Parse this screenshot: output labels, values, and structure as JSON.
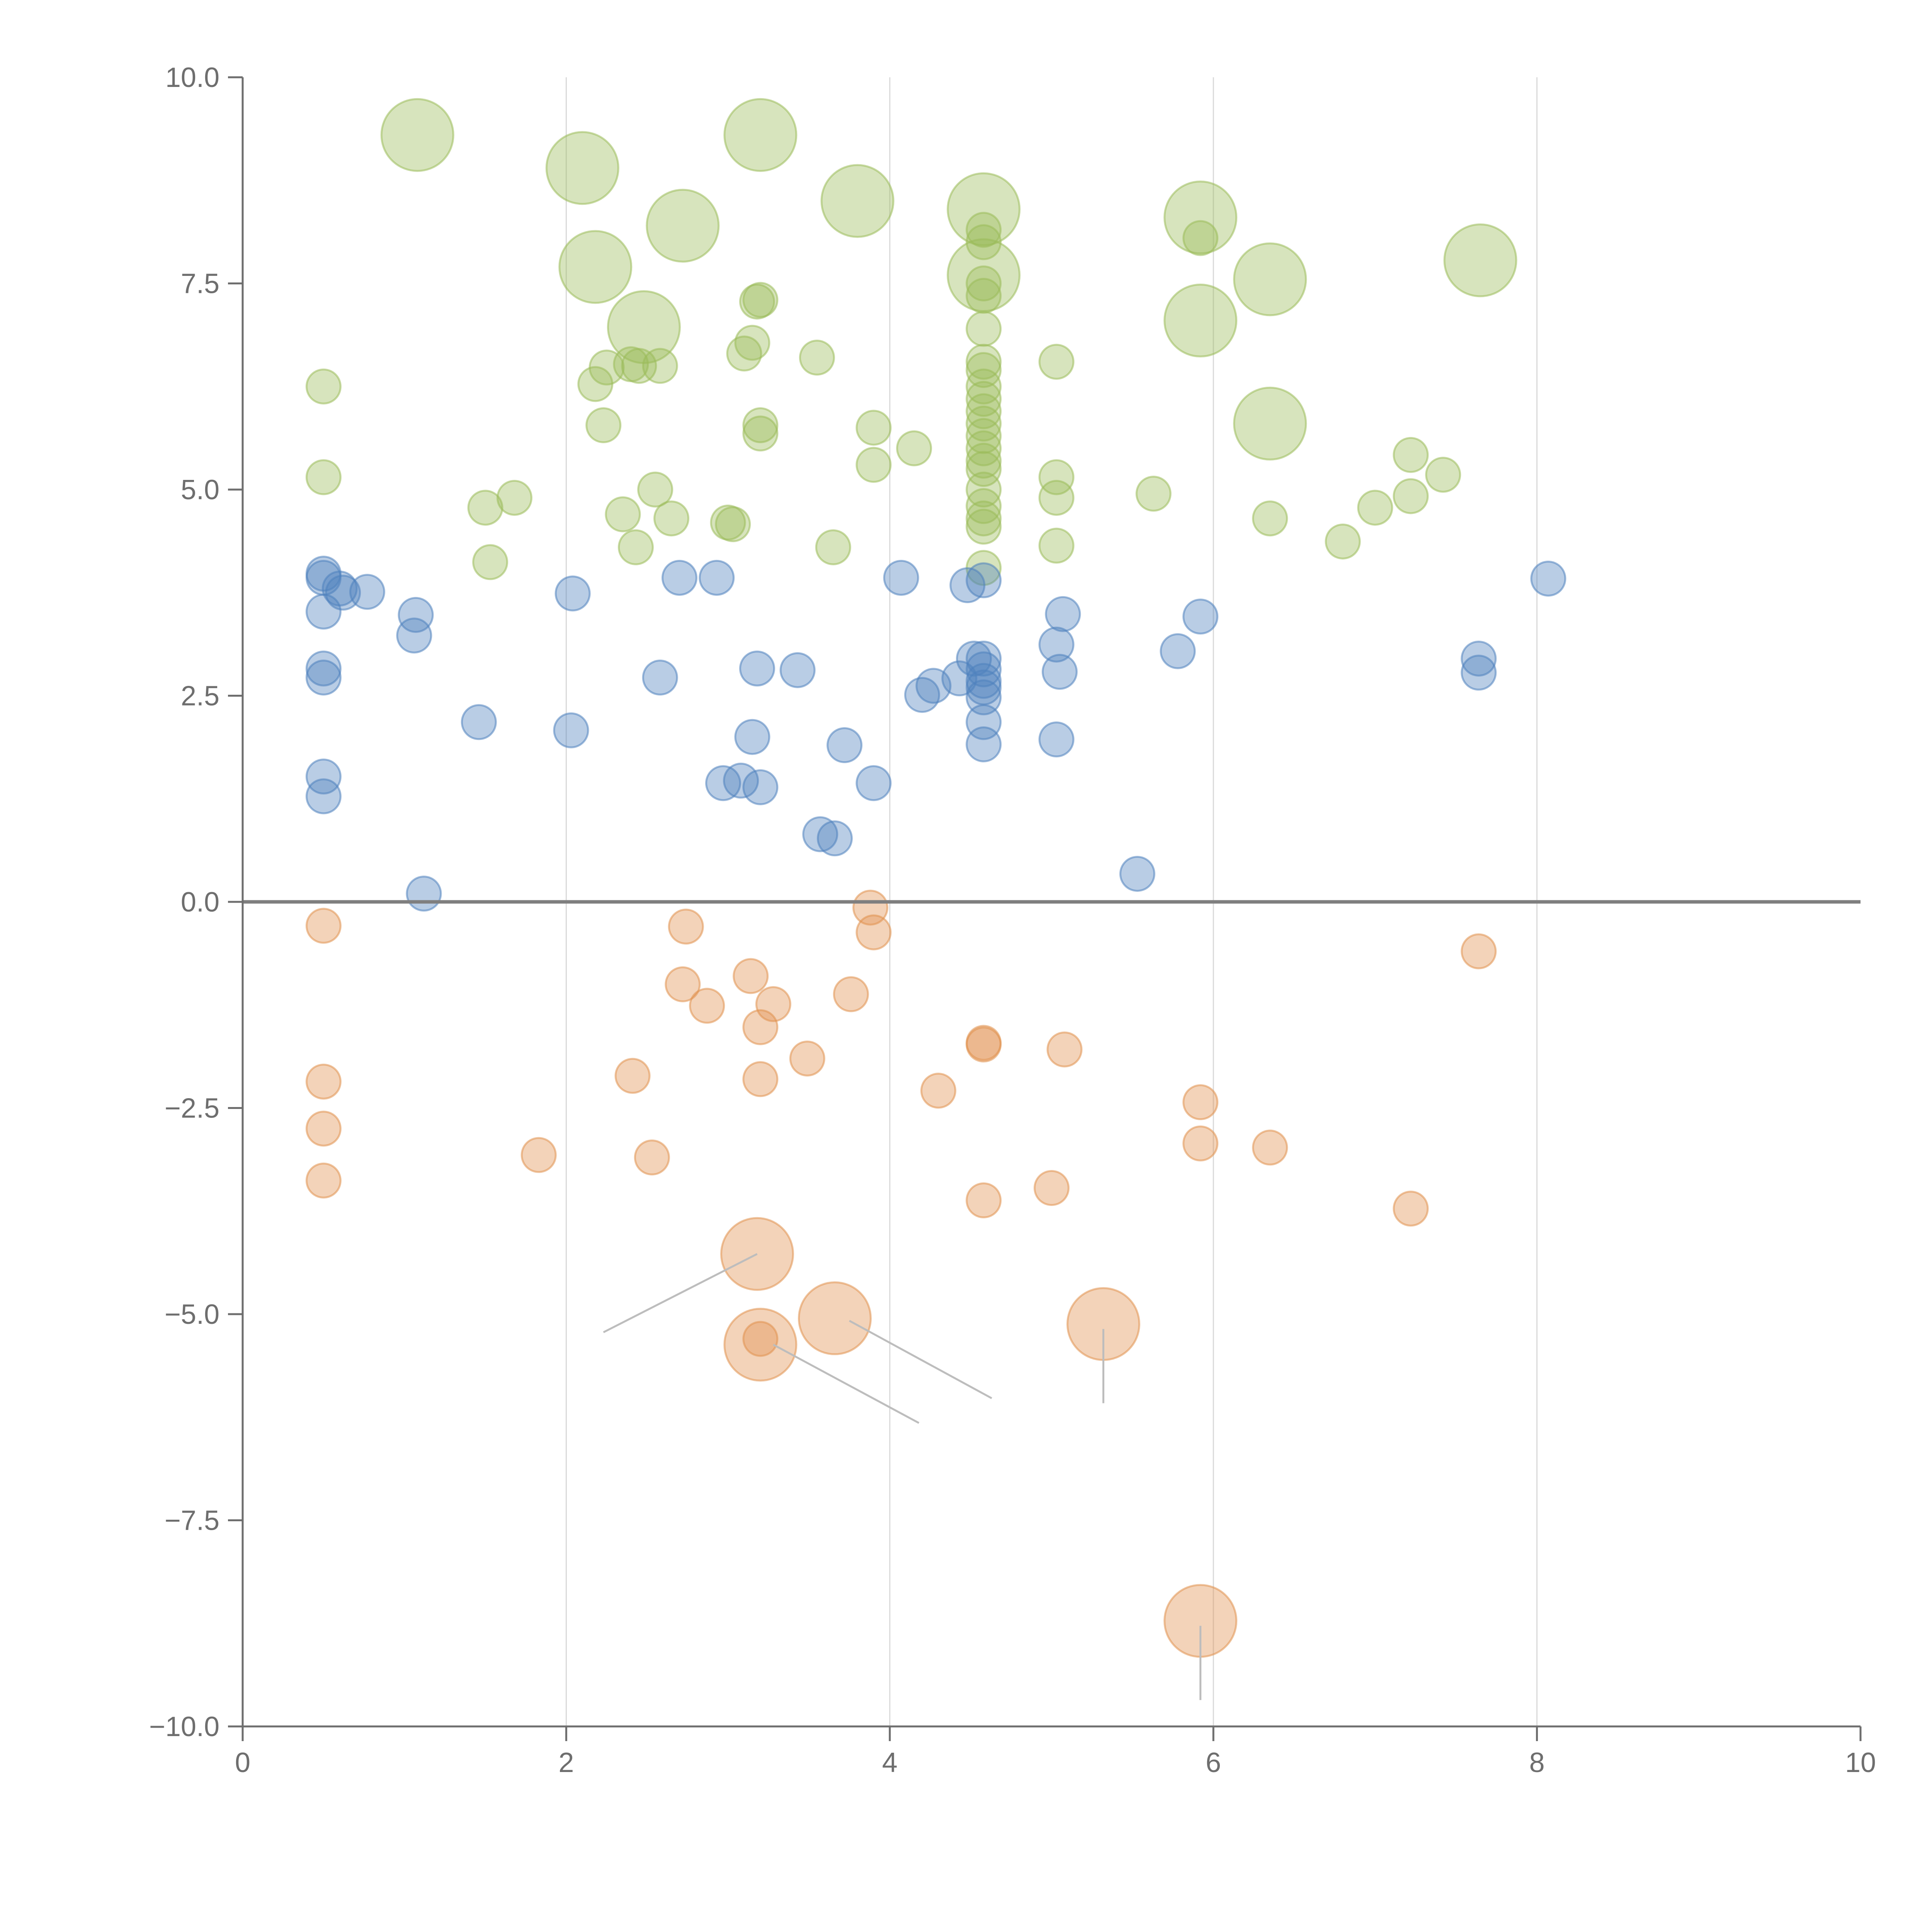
{
  "chart_data": {
    "type": "scatter",
    "title": "",
    "xlabel": "",
    "ylabel": "",
    "xlim": [
      0,
      10
    ],
    "ylim": [
      -10,
      10
    ],
    "x_ticks": [
      "0",
      "2",
      "4",
      "6",
      "8",
      "10"
    ],
    "y_ticks": [
      "10.0",
      "7.5",
      "5.0",
      "2.5",
      "0.0",
      "−2.5",
      "−5.0",
      "−7.5",
      "−10.0"
    ],
    "vertical_grid": [
      2,
      4,
      6,
      8
    ],
    "zero_line": 0,
    "colors": {
      "green": "#9bbb59",
      "blue": "#4f81bd",
      "orange": "#e0914f",
      "axis": "#6e6e6e",
      "grid": "#d9d9d9",
      "zero": "#7f7f7f",
      "leader": "#bdbdbd"
    },
    "series": [
      {
        "name": "green",
        "color": "#9bbb59",
        "points": [
          {
            "x": 1.08,
            "y": 9.3,
            "s": 2
          },
          {
            "x": 2.1,
            "y": 8.9,
            "s": 2
          },
          {
            "x": 3.2,
            "y": 9.3,
            "s": 2
          },
          {
            "x": 2.72,
            "y": 8.2,
            "s": 2
          },
          {
            "x": 3.8,
            "y": 8.5,
            "s": 2
          },
          {
            "x": 4.58,
            "y": 8.4,
            "s": 2
          },
          {
            "x": 5.92,
            "y": 8.3,
            "s": 2
          },
          {
            "x": 2.18,
            "y": 7.7,
            "s": 2
          },
          {
            "x": 4.58,
            "y": 7.6,
            "s": 2
          },
          {
            "x": 6.35,
            "y": 7.55,
            "s": 2
          },
          {
            "x": 7.65,
            "y": 7.78,
            "s": 2
          },
          {
            "x": 2.48,
            "y": 6.97,
            "s": 2
          },
          {
            "x": 5.92,
            "y": 7.05,
            "s": 2
          },
          {
            "x": 6.35,
            "y": 5.8,
            "s": 2
          },
          {
            "x": 0.5,
            "y": 6.25,
            "s": 1
          },
          {
            "x": 0.5,
            "y": 5.15,
            "s": 1
          },
          {
            "x": 1.5,
            "y": 4.78,
            "s": 1
          },
          {
            "x": 1.53,
            "y": 4.12,
            "s": 1
          },
          {
            "x": 1.68,
            "y": 4.9,
            "s": 1
          },
          {
            "x": 2.18,
            "y": 6.28,
            "s": 1
          },
          {
            "x": 2.25,
            "y": 6.48,
            "s": 1
          },
          {
            "x": 2.4,
            "y": 6.52,
            "s": 1
          },
          {
            "x": 2.45,
            "y": 6.5,
            "s": 1
          },
          {
            "x": 2.58,
            "y": 6.5,
            "s": 1
          },
          {
            "x": 2.23,
            "y": 5.78,
            "s": 1
          },
          {
            "x": 2.35,
            "y": 4.7,
            "s": 1
          },
          {
            "x": 2.43,
            "y": 4.3,
            "s": 1
          },
          {
            "x": 2.55,
            "y": 5.0,
            "s": 1
          },
          {
            "x": 2.65,
            "y": 4.65,
            "s": 1
          },
          {
            "x": 3.0,
            "y": 4.6,
            "s": 1
          },
          {
            "x": 3.03,
            "y": 4.58,
            "s": 1
          },
          {
            "x": 3.1,
            "y": 6.65,
            "s": 1
          },
          {
            "x": 3.15,
            "y": 6.78,
            "s": 1
          },
          {
            "x": 3.18,
            "y": 7.28,
            "s": 1
          },
          {
            "x": 3.2,
            "y": 7.3,
            "s": 1
          },
          {
            "x": 3.2,
            "y": 5.78,
            "s": 1
          },
          {
            "x": 3.2,
            "y": 5.68,
            "s": 1
          },
          {
            "x": 3.55,
            "y": 6.6,
            "s": 1
          },
          {
            "x": 3.65,
            "y": 4.3,
            "s": 1
          },
          {
            "x": 3.9,
            "y": 5.75,
            "s": 1
          },
          {
            "x": 3.9,
            "y": 5.3,
            "s": 1
          },
          {
            "x": 4.15,
            "y": 5.5,
            "s": 1
          },
          {
            "x": 4.58,
            "y": 8.15,
            "s": 1
          },
          {
            "x": 4.58,
            "y": 8.0,
            "s": 1
          },
          {
            "x": 4.58,
            "y": 7.5,
            "s": 1
          },
          {
            "x": 4.58,
            "y": 7.35,
            "s": 1
          },
          {
            "x": 4.58,
            "y": 6.95,
            "s": 1
          },
          {
            "x": 4.58,
            "y": 6.55,
            "s": 1
          },
          {
            "x": 4.58,
            "y": 6.45,
            "s": 1
          },
          {
            "x": 4.58,
            "y": 6.25,
            "s": 1
          },
          {
            "x": 4.58,
            "y": 6.1,
            "s": 1
          },
          {
            "x": 4.58,
            "y": 5.95,
            "s": 1
          },
          {
            "x": 4.58,
            "y": 5.8,
            "s": 1
          },
          {
            "x": 4.58,
            "y": 5.65,
            "s": 1
          },
          {
            "x": 4.58,
            "y": 5.5,
            "s": 1
          },
          {
            "x": 4.58,
            "y": 5.35,
            "s": 1
          },
          {
            "x": 4.58,
            "y": 5.25,
            "s": 1
          },
          {
            "x": 4.58,
            "y": 5.0,
            "s": 1
          },
          {
            "x": 4.58,
            "y": 4.8,
            "s": 1
          },
          {
            "x": 4.58,
            "y": 4.65,
            "s": 1
          },
          {
            "x": 4.58,
            "y": 4.55,
            "s": 1
          },
          {
            "x": 4.58,
            "y": 4.05,
            "s": 1
          },
          {
            "x": 5.03,
            "y": 6.55,
            "s": 1
          },
          {
            "x": 5.03,
            "y": 5.15,
            "s": 1
          },
          {
            "x": 5.03,
            "y": 4.9,
            "s": 1
          },
          {
            "x": 5.03,
            "y": 4.32,
            "s": 1
          },
          {
            "x": 5.63,
            "y": 4.95,
            "s": 1
          },
          {
            "x": 5.92,
            "y": 8.05,
            "s": 1
          },
          {
            "x": 6.35,
            "y": 4.65,
            "s": 1
          },
          {
            "x": 6.8,
            "y": 4.37,
            "s": 1
          },
          {
            "x": 7.0,
            "y": 4.78,
            "s": 1
          },
          {
            "x": 7.22,
            "y": 5.42,
            "s": 1
          },
          {
            "x": 7.22,
            "y": 4.92,
            "s": 1
          },
          {
            "x": 7.42,
            "y": 5.18,
            "s": 1
          }
        ]
      },
      {
        "name": "blue",
        "color": "#4f81bd",
        "points": [
          {
            "x": 0.5,
            "y": 3.98,
            "s": 1
          },
          {
            "x": 0.5,
            "y": 3.93,
            "s": 1
          },
          {
            "x": 0.6,
            "y": 3.8,
            "s": 1
          },
          {
            "x": 0.62,
            "y": 3.75,
            "s": 1
          },
          {
            "x": 0.77,
            "y": 3.76,
            "s": 1
          },
          {
            "x": 0.5,
            "y": 3.52,
            "s": 1
          },
          {
            "x": 0.5,
            "y": 2.83,
            "s": 1
          },
          {
            "x": 0.5,
            "y": 2.72,
            "s": 1
          },
          {
            "x": 0.5,
            "y": 1.52,
            "s": 1
          },
          {
            "x": 0.5,
            "y": 1.28,
            "s": 1
          },
          {
            "x": 1.07,
            "y": 3.48,
            "s": 1
          },
          {
            "x": 1.06,
            "y": 3.23,
            "s": 1
          },
          {
            "x": 1.12,
            "y": 0.1,
            "s": 1
          },
          {
            "x": 1.46,
            "y": 2.18,
            "s": 1
          },
          {
            "x": 2.04,
            "y": 3.74,
            "s": 1
          },
          {
            "x": 2.03,
            "y": 2.08,
            "s": 1
          },
          {
            "x": 2.58,
            "y": 2.72,
            "s": 1
          },
          {
            "x": 2.7,
            "y": 3.93,
            "s": 1
          },
          {
            "x": 2.93,
            "y": 3.93,
            "s": 1
          },
          {
            "x": 2.97,
            "y": 1.44,
            "s": 1
          },
          {
            "x": 3.08,
            "y": 1.47,
            "s": 1
          },
          {
            "x": 3.18,
            "y": 2.83,
            "s": 1
          },
          {
            "x": 3.15,
            "y": 2.0,
            "s": 1
          },
          {
            "x": 3.2,
            "y": 1.39,
            "s": 1
          },
          {
            "x": 3.43,
            "y": 2.81,
            "s": 1
          },
          {
            "x": 3.57,
            "y": 0.82,
            "s": 1
          },
          {
            "x": 3.66,
            "y": 0.77,
            "s": 1
          },
          {
            "x": 3.72,
            "y": 1.9,
            "s": 1
          },
          {
            "x": 3.9,
            "y": 1.44,
            "s": 1
          },
          {
            "x": 4.07,
            "y": 3.93,
            "s": 1
          },
          {
            "x": 4.2,
            "y": 2.51,
            "s": 1
          },
          {
            "x": 4.27,
            "y": 2.62,
            "s": 1
          },
          {
            "x": 4.43,
            "y": 2.71,
            "s": 1
          },
          {
            "x": 4.48,
            "y": 3.84,
            "s": 1
          },
          {
            "x": 4.52,
            "y": 2.95,
            "s": 1
          },
          {
            "x": 4.58,
            "y": 3.9,
            "s": 1
          },
          {
            "x": 4.58,
            "y": 2.95,
            "s": 1
          },
          {
            "x": 4.58,
            "y": 2.82,
            "s": 1
          },
          {
            "x": 4.58,
            "y": 2.68,
            "s": 1
          },
          {
            "x": 4.58,
            "y": 2.6,
            "s": 1
          },
          {
            "x": 4.58,
            "y": 2.48,
            "s": 1
          },
          {
            "x": 4.58,
            "y": 2.18,
            "s": 1
          },
          {
            "x": 4.58,
            "y": 1.91,
            "s": 1
          },
          {
            "x": 5.07,
            "y": 3.49,
            "s": 1
          },
          {
            "x": 5.03,
            "y": 3.12,
            "s": 1
          },
          {
            "x": 5.05,
            "y": 2.79,
            "s": 1
          },
          {
            "x": 5.03,
            "y": 1.97,
            "s": 1
          },
          {
            "x": 5.53,
            "y": 0.34,
            "s": 1
          },
          {
            "x": 5.78,
            "y": 3.04,
            "s": 1
          },
          {
            "x": 5.92,
            "y": 3.46,
            "s": 1
          },
          {
            "x": 7.64,
            "y": 2.95,
            "s": 1
          },
          {
            "x": 7.64,
            "y": 2.78,
            "s": 1
          },
          {
            "x": 8.07,
            "y": 3.92,
            "s": 1
          }
        ]
      },
      {
        "name": "orange",
        "color": "#e0914f",
        "points": [
          {
            "x": 0.5,
            "y": -0.29,
            "s": 1
          },
          {
            "x": 0.5,
            "y": -2.18,
            "s": 1
          },
          {
            "x": 0.5,
            "y": -2.75,
            "s": 1
          },
          {
            "x": 0.5,
            "y": -3.38,
            "s": 1
          },
          {
            "x": 1.83,
            "y": -3.07,
            "s": 1
          },
          {
            "x": 2.41,
            "y": -2.11,
            "s": 1
          },
          {
            "x": 2.53,
            "y": -3.1,
            "s": 1
          },
          {
            "x": 2.74,
            "y": -0.3,
            "s": 1
          },
          {
            "x": 2.72,
            "y": -1.0,
            "s": 1
          },
          {
            "x": 2.87,
            "y": -1.26,
            "s": 1
          },
          {
            "x": 3.14,
            "y": -0.9,
            "s": 1
          },
          {
            "x": 3.28,
            "y": -1.24,
            "s": 1
          },
          {
            "x": 3.2,
            "y": -1.52,
            "s": 1
          },
          {
            "x": 3.2,
            "y": -2.15,
            "s": 1
          },
          {
            "x": 3.49,
            "y": -1.9,
            "s": 1
          },
          {
            "x": 3.76,
            "y": -1.12,
            "s": 1
          },
          {
            "x": 3.88,
            "y": -0.07,
            "s": 1
          },
          {
            "x": 3.9,
            "y": -0.37,
            "s": 1
          },
          {
            "x": 4.3,
            "y": -2.29,
            "s": 1
          },
          {
            "x": 4.58,
            "y": -1.71,
            "s": 1
          },
          {
            "x": 4.58,
            "y": -1.73,
            "s": 1
          },
          {
            "x": 4.58,
            "y": -3.62,
            "s": 1
          },
          {
            "x": 5.0,
            "y": -3.47,
            "s": 1
          },
          {
            "x": 5.08,
            "y": -1.79,
            "s": 1
          },
          {
            "x": 5.92,
            "y": -2.43,
            "s": 1
          },
          {
            "x": 5.92,
            "y": -2.93,
            "s": 1
          },
          {
            "x": 6.35,
            "y": -2.98,
            "s": 1
          },
          {
            "x": 7.22,
            "y": -3.72,
            "s": 1
          },
          {
            "x": 7.64,
            "y": -0.6,
            "s": 1
          },
          {
            "x": 3.2,
            "y": -5.3,
            "s": 1
          },
          {
            "x": 3.18,
            "y": -4.27,
            "s": 2
          },
          {
            "x": 3.2,
            "y": -5.37,
            "s": 2
          },
          {
            "x": 3.66,
            "y": -5.05,
            "s": 2
          },
          {
            "x": 5.32,
            "y": -5.12,
            "s": 2
          },
          {
            "x": 5.92,
            "y": -8.72,
            "s": 2
          }
        ]
      }
    ],
    "leader_lines": [
      {
        "x1": 3.18,
        "y1": -4.27,
        "x2": 2.23,
        "y2": -5.22
      },
      {
        "x1": 3.28,
        "y1": -5.37,
        "x2": 4.18,
        "y2": -6.32
      },
      {
        "x1": 3.75,
        "y1": -5.08,
        "x2": 4.63,
        "y2": -6.02
      },
      {
        "x1": 5.32,
        "y1": -5.18,
        "x2": 5.32,
        "y2": -6.08
      },
      {
        "x1": 5.92,
        "y1": -8.78,
        "x2": 5.92,
        "y2": -9.68
      }
    ]
  }
}
